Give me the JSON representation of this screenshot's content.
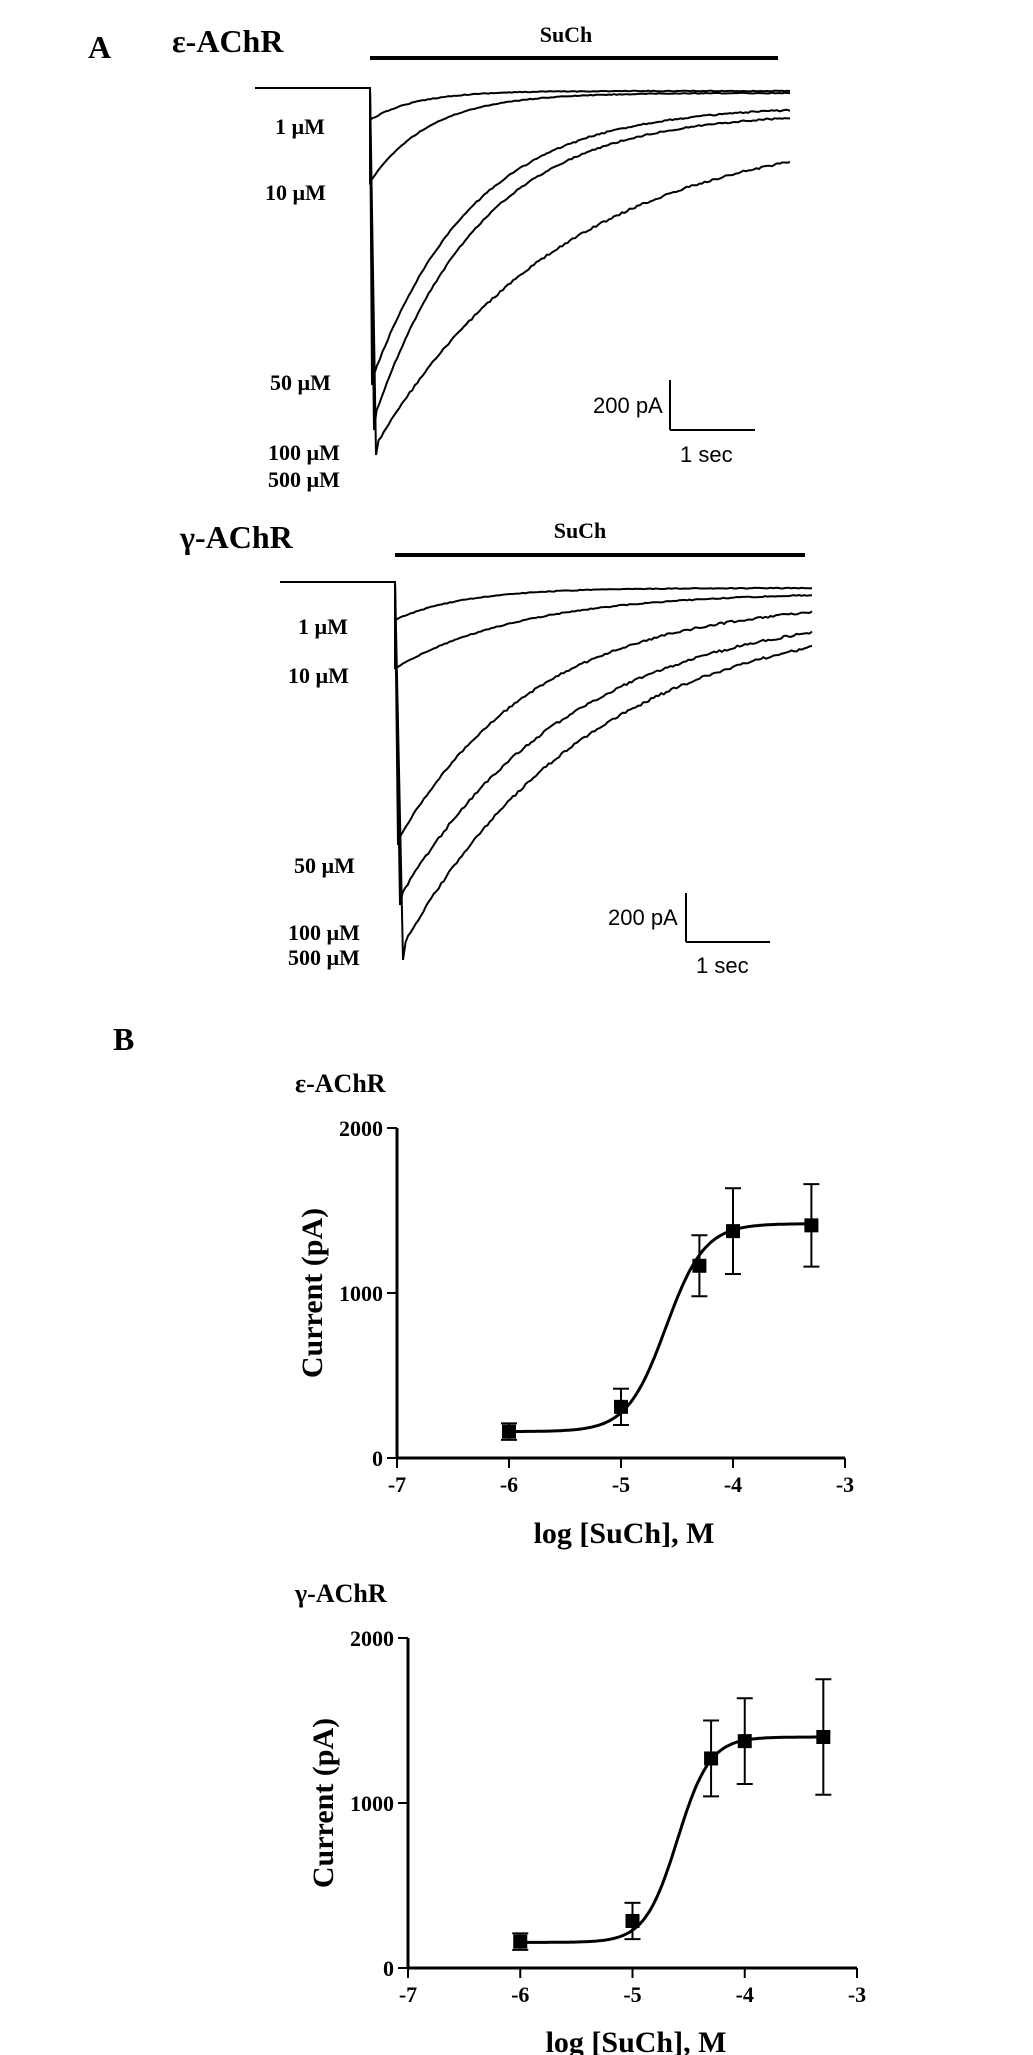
{
  "panel_a": {
    "label": "A",
    "traces_epsilon": {
      "receptor": "ε-AChR",
      "drug_bar_label": "SuCh",
      "concentration_labels": [
        "1 µM",
        "10 µM",
        "50 µM",
        "100 µM",
        "500 µM"
      ],
      "scale_current": "200 pA",
      "scale_time": "1 sec"
    },
    "traces_gamma": {
      "receptor": "γ-AChR",
      "drug_bar_label": "SuCh",
      "concentration_labels": [
        "1 µM",
        "10 µM",
        "50 µM",
        "100 µM",
        "500 µM"
      ],
      "scale_current": "200 pA",
      "scale_time": "1 sec"
    }
  },
  "panel_b": {
    "label": "B"
  },
  "chart_data": [
    {
      "type": "scatter",
      "title": "ε-AChR",
      "xlabel": "log [SuCh], M",
      "ylabel": "Current (pA)",
      "xlim": [
        -7,
        -3
      ],
      "ylim": [
        0,
        2000
      ],
      "x_ticks": [
        -7,
        -6,
        -5,
        -4,
        -3
      ],
      "y_ticks": [
        0,
        1000,
        2000
      ],
      "x": [
        -6,
        -5,
        -4.3,
        -4,
        -3.3
      ],
      "y": [
        160,
        310,
        1165,
        1375,
        1410
      ],
      "error": [
        50,
        110,
        185,
        260,
        250
      ],
      "fit": {
        "bottom": 160,
        "top": 1420,
        "logEC50": -4.6,
        "hill": 2.5
      }
    },
    {
      "type": "scatter",
      "title": "γ-AChR",
      "xlabel": "log [SuCh], M",
      "ylabel": "Current (pA)",
      "xlim": [
        -7,
        -3
      ],
      "ylim": [
        0,
        2000
      ],
      "x_ticks": [
        -7,
        -6,
        -5,
        -4,
        -3
      ],
      "y_ticks": [
        0,
        1000,
        2000
      ],
      "x": [
        -6,
        -5,
        -4.3,
        -4,
        -3.3
      ],
      "y": [
        160,
        285,
        1270,
        1375,
        1400
      ],
      "error": [
        50,
        110,
        230,
        260,
        350
      ],
      "fit": {
        "bottom": 155,
        "top": 1400,
        "logEC50": -4.6,
        "hill": 3.0
      }
    }
  ]
}
